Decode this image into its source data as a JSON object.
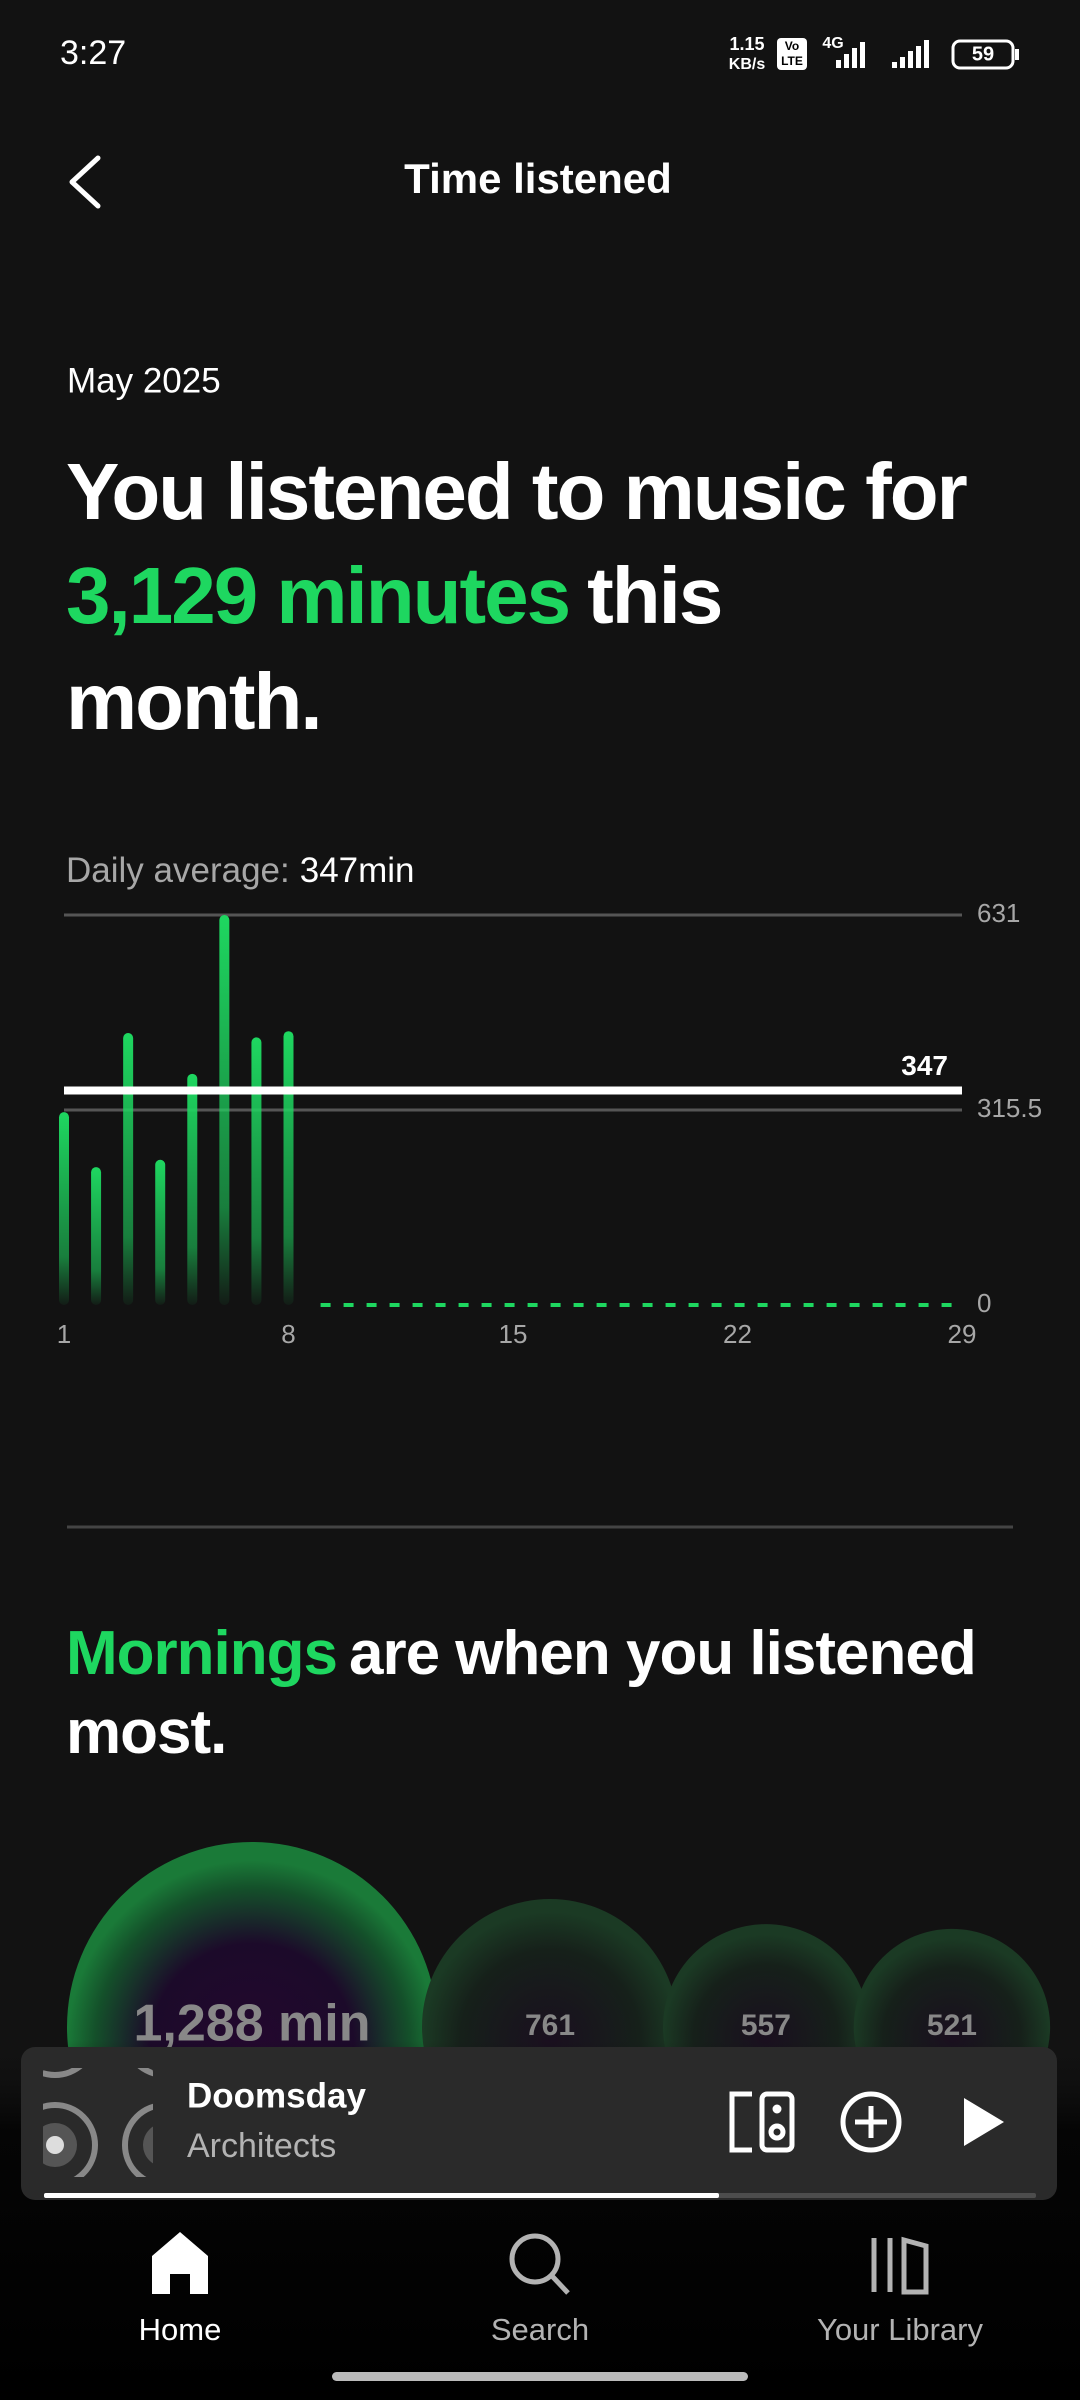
{
  "status_bar": {
    "time": "3:27",
    "net_speed": "1.15",
    "net_unit": "KB/s",
    "volte": [
      "Vo",
      "LTE"
    ],
    "network": "4G",
    "battery": "59"
  },
  "header": {
    "title": "Time listened"
  },
  "period": "May 2025",
  "headline": {
    "before": "You listened to music for",
    "highlight": "3,129 minutes",
    "after_1": "this",
    "after_2": "month."
  },
  "average_text": {
    "label": "Daily average:",
    "value": "347min"
  },
  "section": {
    "highlight": "Mornings",
    "rest_1": "are when you listened",
    "rest_2": "most."
  },
  "chart_data": [
    {
      "type": "bar",
      "color": "#1ed760",
      "x": [
        1,
        2,
        3,
        4,
        5,
        6,
        7,
        8
      ],
      "values": [
        312,
        223,
        440,
        235,
        374,
        631,
        433,
        443
      ],
      "xlim": [
        1,
        29
      ],
      "xticks": [
        1,
        8,
        15,
        22,
        29
      ],
      "ylim": [
        0,
        631
      ],
      "yticks": [
        0,
        315.5,
        631
      ],
      "average": 347,
      "grid": true
    },
    {
      "type": "bubble",
      "color": "#1db954",
      "values": [
        1288,
        761,
        557,
        521
      ],
      "value_labels": [
        "1,288 min",
        "761",
        "557",
        "521"
      ]
    }
  ],
  "player": {
    "title": "Doomsday",
    "artist": "Architects"
  },
  "nav": [
    "Home",
    "Search",
    "Your Library"
  ]
}
